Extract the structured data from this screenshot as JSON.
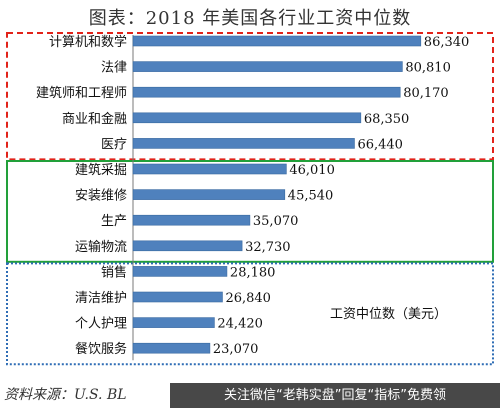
{
  "title": "图表：2018 年美国各行业工资中位数",
  "source": "资料来源：U.S. BL",
  "watermark": "关注微信“老韩实盘”回复“指标”免费领",
  "colors": {
    "bar": "#4f81bd",
    "group_top": "#e2231a",
    "group_mid": "#22a03a",
    "group_bottom": "#2f6db5"
  },
  "chart_data": {
    "type": "bar",
    "orientation": "horizontal",
    "title": "图表：2018 年美国各行业工资中位数",
    "legend_note": "工资中位数（美元）",
    "xlim": [
      0,
      90000
    ],
    "grid": false,
    "categories": [
      "计算机和数学",
      "法律",
      "建筑师和工程师",
      "商业和金融",
      "医疗",
      "建筑采掘",
      "安装维修",
      "生产",
      "运输物流",
      "销售",
      "清洁维护",
      "个人护理",
      "餐饮服务"
    ],
    "values": [
      86340,
      80810,
      80170,
      68350,
      66440,
      46010,
      45540,
      35070,
      32730,
      28180,
      26840,
      24420,
      23070
    ],
    "value_labels": [
      "86,340",
      "80,810",
      "80,170",
      "68,350",
      "66,440",
      "46,010",
      "45,540",
      "35,070",
      "32,730",
      "28,180",
      "26,840",
      "24,420",
      "23,070"
    ],
    "groups": [
      {
        "border": "dashed",
        "color_key": "group_top",
        "range": [
          0,
          4
        ]
      },
      {
        "border": "solid",
        "color_key": "group_mid",
        "range": [
          5,
          8
        ]
      },
      {
        "border": "dotted",
        "color_key": "group_bottom",
        "range": [
          9,
          12
        ]
      }
    ]
  }
}
